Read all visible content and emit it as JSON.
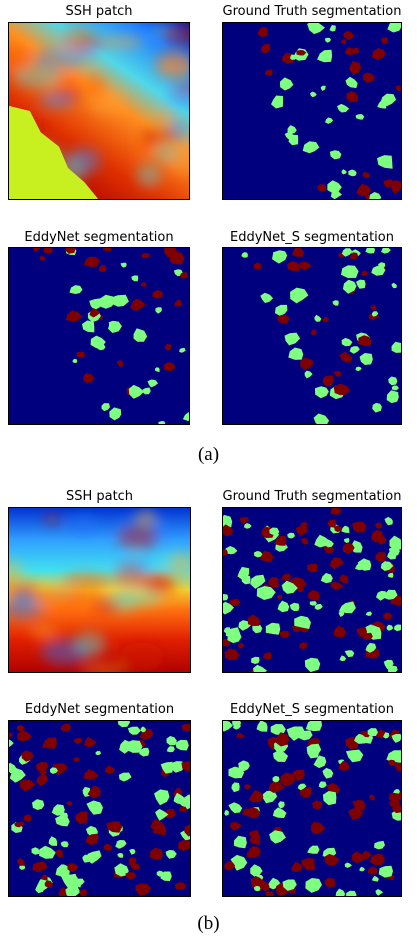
{
  "figures": [
    {
      "panels": [
        {
          "title": "SSH patch"
        },
        {
          "title": "Ground Truth segmentation"
        },
        {
          "title": "EddyNet segmentation"
        },
        {
          "title": "EddyNet_S segmentation"
        }
      ],
      "caption": "(a)"
    },
    {
      "panels": [
        {
          "title": "SSH patch"
        },
        {
          "title": "Ground Truth segmentation"
        },
        {
          "title": "EddyNet segmentation"
        },
        {
          "title": "EddyNet_S segmentation"
        }
      ],
      "caption": "(b)"
    }
  ]
}
